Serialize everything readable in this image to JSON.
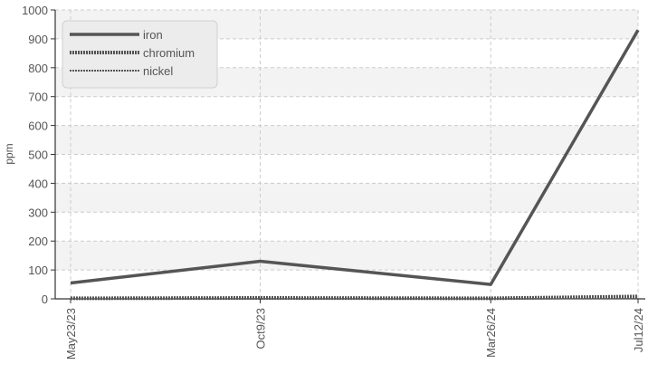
{
  "chart_data": {
    "type": "line",
    "title": "",
    "xlabel": "",
    "ylabel": "ppm",
    "ylim": [
      0,
      1000
    ],
    "yticks": [
      0,
      100,
      200,
      300,
      400,
      500,
      600,
      700,
      800,
      900,
      1000
    ],
    "categories": [
      "May23/23",
      "Oct9/23",
      "Mar26/24",
      "Jul12/24"
    ],
    "x_dates": [
      "2023-05-23",
      "2023-10-09",
      "2024-03-26",
      "2024-07-12"
    ],
    "series": [
      {
        "name": "iron",
        "values": [
          55,
          130,
          50,
          930
        ],
        "style": "solid"
      },
      {
        "name": "chromium",
        "values": [
          2,
          3,
          2,
          8
        ],
        "style": "dashed-thick"
      },
      {
        "name": "nickel",
        "values": [
          1,
          1,
          1,
          2
        ],
        "style": "dotted-thin"
      }
    ],
    "grid": true,
    "legend_position": "top-left",
    "colors": {
      "line": "#555555",
      "grid": "#cccccc",
      "band": "#f3f3f3",
      "legend_bg": "#ececec"
    }
  }
}
